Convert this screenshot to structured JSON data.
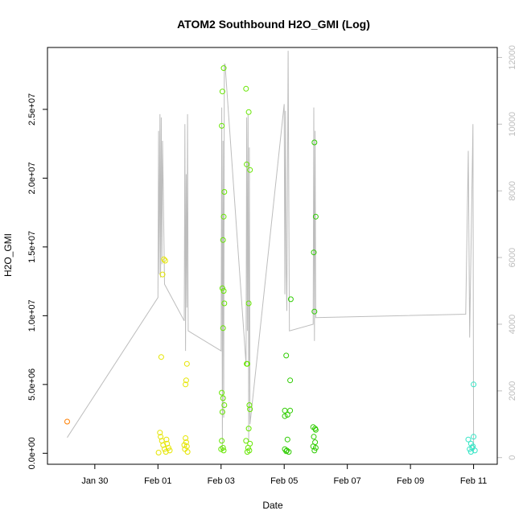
{
  "chart_data": {
    "type": "scatter",
    "title": "ATOM2 Southbound H2O_GMI (Log)",
    "xlabel": "Date",
    "ylabel": "H2O_GMI",
    "x_tick_labels": [
      "Jan 30",
      "Feb 01",
      "Feb 03",
      "Feb 05",
      "Feb 07",
      "Feb 09",
      "Feb 11"
    ],
    "x_tick_dates": [
      "2017-01-30",
      "2017-02-01",
      "2017-02-03",
      "2017-02-05",
      "2017-02-07",
      "2017-02-09",
      "2017-02-11"
    ],
    "xlim": [
      "2017-01-28T12:00",
      "2017-02-11T18:00"
    ],
    "y_tick_labels": [
      "0.0e+00",
      "5.0e+06",
      "1.0e+07",
      "1.5e+07",
      "2.0e+07",
      "2.5e+07"
    ],
    "y_tick_values": [
      0,
      5000000,
      10000000,
      15000000,
      20000000,
      25000000
    ],
    "ylim": [
      -800000,
      29500000
    ],
    "y2_tick_labels": [
      "0",
      "2000",
      "4000",
      "6000",
      "8000",
      "10000",
      "12000"
    ],
    "y2_tick_values": [
      0,
      2000,
      4000,
      6000,
      8000,
      10000,
      12000
    ],
    "y2lim": [
      -200,
      12300
    ],
    "grid": false,
    "legend": "none",
    "colors": {
      "orange": "#ff7f00",
      "yellow": "#e5e500",
      "yellow_green": "#b2ee00",
      "green": "#66e600",
      "bright_green": "#2ecc00",
      "cyan": "#33e5c5",
      "altitude": "#bdbdbd"
    },
    "series": [
      {
        "color_key": "orange",
        "points": [
          [
            "2017-01-29T03:00",
            2300000
          ]
        ]
      },
      {
        "color_key": "yellow",
        "points": [
          [
            "2017-02-01T02:00",
            1200000
          ],
          [
            "2017-02-01T03:00",
            900000
          ],
          [
            "2017-02-01T04:00",
            600000
          ],
          [
            "2017-02-01T05:00",
            300000
          ],
          [
            "2017-02-01T06:00",
            100000
          ],
          [
            "2017-02-01T07:00",
            700000
          ],
          [
            "2017-02-01T08:00",
            400000
          ],
          [
            "2017-02-01T09:00",
            200000
          ],
          [
            "2017-02-01T00:30",
            50000
          ],
          [
            "2017-02-01T02:30",
            7000000
          ],
          [
            "2017-02-01T03:30",
            13000000
          ],
          [
            "2017-02-01T04:30",
            14100000
          ],
          [
            "2017-02-01T05:30",
            14000000
          ],
          [
            "2017-02-01T01:30",
            1500000
          ],
          [
            "2017-02-01T06:30",
            1000000
          ],
          [
            "2017-02-01T21:00",
            5000000
          ],
          [
            "2017-02-01T21:30",
            5300000
          ],
          [
            "2017-02-01T22:00",
            6500000
          ],
          [
            "2017-02-01T21:00",
            1100000
          ],
          [
            "2017-02-01T21:30",
            800000
          ],
          [
            "2017-02-01T22:00",
            500000
          ],
          [
            "2017-02-01T20:30",
            300000
          ],
          [
            "2017-02-01T22:30",
            100000
          ],
          [
            "2017-02-01T20:00",
            600000
          ]
        ]
      },
      {
        "color_key": "green",
        "points": [
          [
            "2017-02-03T02:00",
            28000000
          ],
          [
            "2017-02-03T01:00",
            26300000
          ],
          [
            "2017-02-03T00:30",
            23800000
          ],
          [
            "2017-02-03T02:30",
            19000000
          ],
          [
            "2017-02-03T02:00",
            17200000
          ],
          [
            "2017-02-03T01:30",
            15500000
          ],
          [
            "2017-02-03T01:00",
            12000000
          ],
          [
            "2017-02-03T02:00",
            11800000
          ],
          [
            "2017-02-03T02:30",
            10900000
          ],
          [
            "2017-02-03T01:30",
            9100000
          ],
          [
            "2017-02-03T00:30",
            4400000
          ],
          [
            "2017-02-03T01:30",
            4000000
          ],
          [
            "2017-02-03T02:30",
            3500000
          ],
          [
            "2017-02-03T01:00",
            3000000
          ],
          [
            "2017-02-03T00:30",
            900000
          ],
          [
            "2017-02-03T01:30",
            400000
          ],
          [
            "2017-02-03T02:00",
            200000
          ],
          [
            "2017-02-03T00:00",
            300000
          ],
          [
            "2017-02-03T19:00",
            26500000
          ],
          [
            "2017-02-03T21:00",
            24800000
          ],
          [
            "2017-02-03T19:30",
            21000000
          ],
          [
            "2017-02-03T22:00",
            20600000
          ],
          [
            "2017-02-03T21:00",
            10900000
          ],
          [
            "2017-02-03T19:30",
            6500000
          ],
          [
            "2017-02-03T20:00",
            6500000
          ],
          [
            "2017-02-03T21:30",
            3500000
          ],
          [
            "2017-02-03T22:00",
            3200000
          ],
          [
            "2017-02-03T21:00",
            1800000
          ],
          [
            "2017-02-03T19:00",
            900000
          ],
          [
            "2017-02-03T22:00",
            700000
          ],
          [
            "2017-02-03T20:30",
            400000
          ],
          [
            "2017-02-03T21:30",
            200000
          ],
          [
            "2017-02-03T20:00",
            100000
          ]
        ]
      },
      {
        "color_key": "bright_green",
        "points": [
          [
            "2017-02-05T01:30",
            7100000
          ],
          [
            "2017-02-05T05:00",
            11200000
          ],
          [
            "2017-02-05T04:30",
            5300000
          ],
          [
            "2017-02-05T00:30",
            3100000
          ],
          [
            "2017-02-05T04:30",
            3100000
          ],
          [
            "2017-02-05T00:30",
            2700000
          ],
          [
            "2017-02-05T02:30",
            2800000
          ],
          [
            "2017-02-05T02:30",
            1000000
          ],
          [
            "2017-02-05T00:30",
            300000
          ],
          [
            "2017-02-05T02:00",
            200000
          ],
          [
            "2017-02-05T03:30",
            100000
          ],
          [
            "2017-02-05T01:30",
            150000
          ],
          [
            "2017-02-05T23:00",
            22600000
          ],
          [
            "2017-02-06T00:00",
            17200000
          ],
          [
            "2017-02-05T22:30",
            14600000
          ],
          [
            "2017-02-05T23:00",
            10300000
          ],
          [
            "2017-02-05T22:00",
            1900000
          ],
          [
            "2017-02-05T23:30",
            1800000
          ],
          [
            "2017-02-06T00:00",
            1700000
          ],
          [
            "2017-02-05T22:30",
            1200000
          ],
          [
            "2017-02-05T23:30",
            800000
          ],
          [
            "2017-02-05T22:00",
            500000
          ],
          [
            "2017-02-05T23:00",
            200000
          ],
          [
            "2017-02-06T00:00",
            400000
          ]
        ]
      },
      {
        "color_key": "cyan",
        "points": [
          [
            "2017-02-11T00:00",
            5000000
          ],
          [
            "2017-02-10T20:00",
            1000000
          ],
          [
            "2017-02-10T22:00",
            700000
          ],
          [
            "2017-02-11T00:00",
            1200000
          ],
          [
            "2017-02-10T23:00",
            400000
          ],
          [
            "2017-02-10T21:00",
            300000
          ],
          [
            "2017-02-11T01:00",
            200000
          ],
          [
            "2017-02-10T22:00",
            100000
          ],
          [
            "2017-02-10T23:30",
            500000
          ]
        ]
      }
    ],
    "altitude_series": {
      "axis": "right",
      "color_key": "altitude",
      "points": [
        [
          "2017-01-29T03:00",
          600
        ],
        [
          "2017-02-01T00:00",
          4800
        ],
        [
          "2017-02-01T00:30",
          9800
        ],
        [
          "2017-02-01T01:00",
          5500
        ],
        [
          "2017-02-01T01:30",
          10300
        ],
        [
          "2017-02-01T02:00",
          5400
        ],
        [
          "2017-02-01T02:30",
          10200
        ],
        [
          "2017-02-01T03:00",
          5800
        ],
        [
          "2017-02-01T03:30",
          9500
        ],
        [
          "2017-02-01T04:00",
          8200
        ],
        [
          "2017-02-01T05:00",
          5200
        ],
        [
          "2017-02-01T20:00",
          4100
        ],
        [
          "2017-02-01T20:30",
          10000
        ],
        [
          "2017-02-01T21:00",
          3200
        ],
        [
          "2017-02-01T21:30",
          8500
        ],
        [
          "2017-02-01T22:00",
          4500
        ],
        [
          "2017-02-01T22:30",
          10300
        ],
        [
          "2017-02-01T23:00",
          3800
        ],
        [
          "2017-02-03T00:00",
          3200
        ],
        [
          "2017-02-03T00:30",
          10500
        ],
        [
          "2017-02-03T01:00",
          200
        ],
        [
          "2017-02-03T01:30",
          9500
        ],
        [
          "2017-02-03T02:00",
          1200
        ],
        [
          "2017-02-03T02:30",
          11800
        ],
        [
          "2017-02-03T03:00",
          11800
        ],
        [
          "2017-02-03T19:00",
          2800
        ],
        [
          "2017-02-03T19:30",
          10200
        ],
        [
          "2017-02-03T20:00",
          3800
        ],
        [
          "2017-02-03T20:30",
          10300
        ],
        [
          "2017-02-03T21:00",
          500
        ],
        [
          "2017-02-03T21:30",
          9300
        ],
        [
          "2017-02-03T22:00",
          1000
        ],
        [
          "2017-02-05T00:00",
          10600
        ],
        [
          "2017-02-05T00:30",
          4900
        ],
        [
          "2017-02-05T01:00",
          10400
        ],
        [
          "2017-02-05T01:30",
          5600
        ],
        [
          "2017-02-05T02:00",
          4400
        ],
        [
          "2017-02-05T03:00",
          12200
        ],
        [
          "2017-02-05T04:00",
          3800
        ],
        [
          "2017-02-05T22:00",
          4000
        ],
        [
          "2017-02-05T22:30",
          10500
        ],
        [
          "2017-02-05T23:00",
          3500
        ],
        [
          "2017-02-05T23:30",
          9800
        ],
        [
          "2017-02-06T00:00",
          4200
        ],
        [
          "2017-02-10T18:00",
          4300
        ],
        [
          "2017-02-10T20:00",
          9200
        ],
        [
          "2017-02-10T21:00",
          3600
        ],
        [
          "2017-02-10T23:30",
          10000
        ],
        [
          "2017-02-11T00:00",
          200
        ]
      ]
    }
  }
}
